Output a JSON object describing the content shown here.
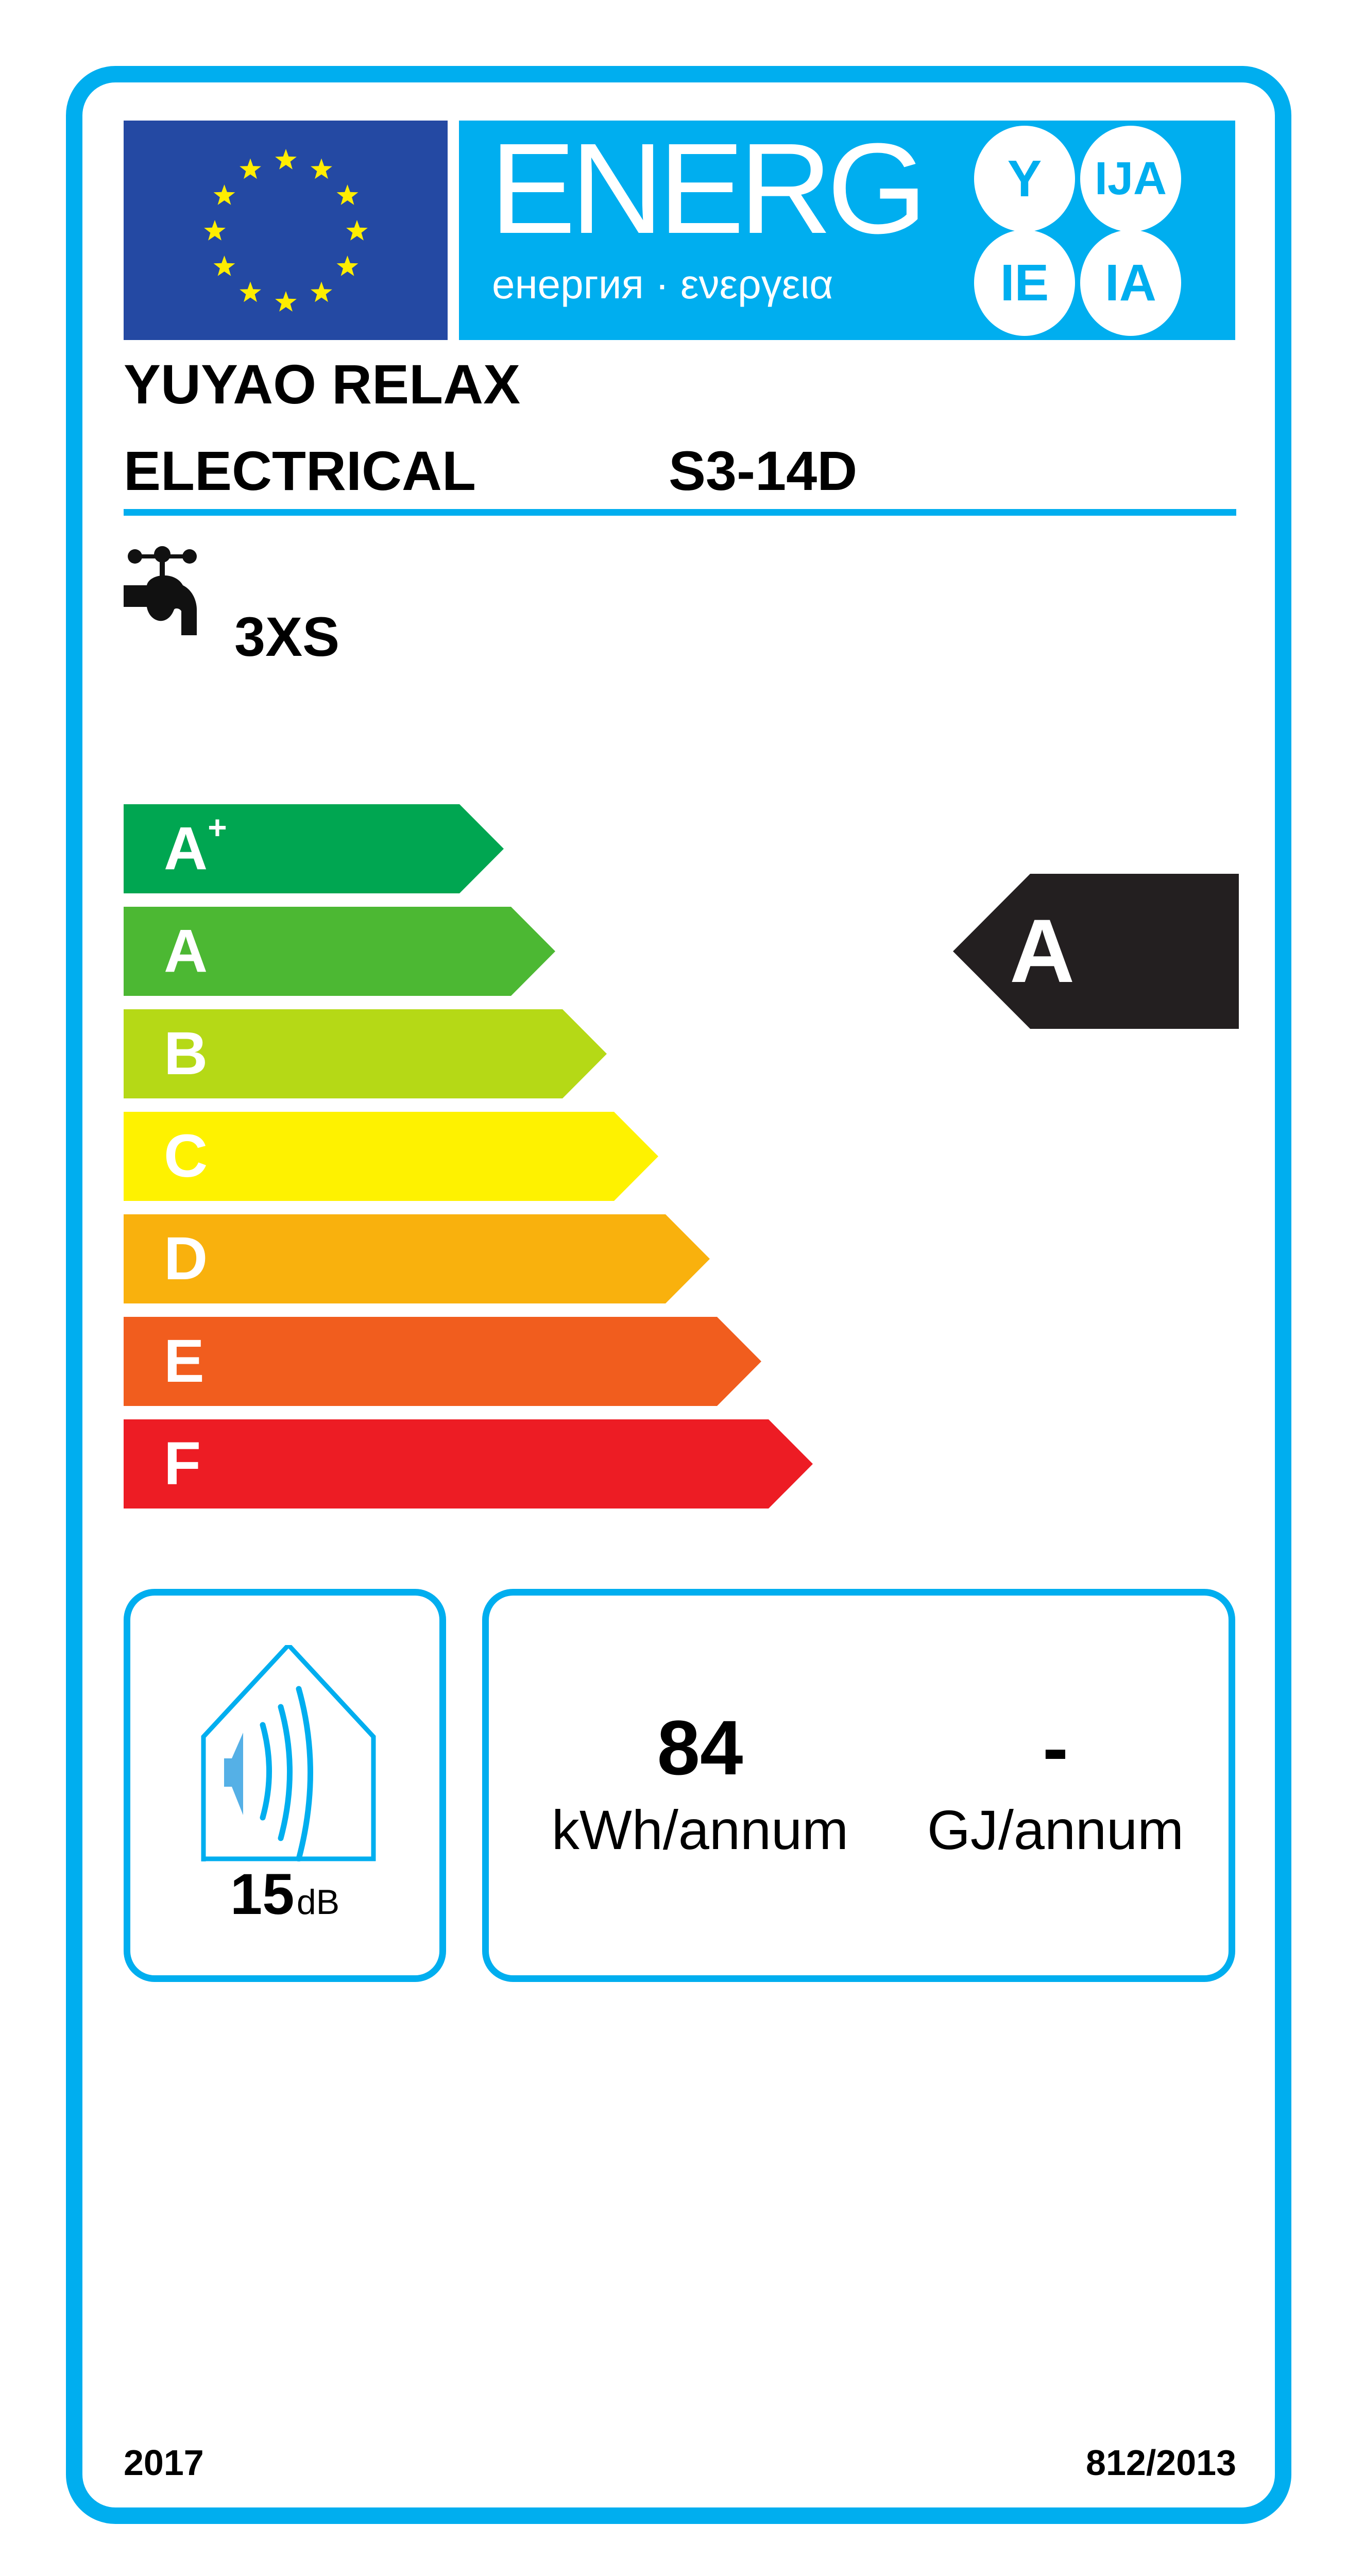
{
  "header": {
    "energy_word": "ENERG",
    "energy_subtitle": "енергия · ενεργεια",
    "language_suffixes": [
      "Y",
      "IJA",
      "IE",
      "IA"
    ],
    "flag_icon": "eu-flag-icon"
  },
  "supplier": {
    "name_line1": "YUYAO RELAX",
    "name_line2": "ELECTRICAL",
    "model": "S3-14D"
  },
  "load_profile": {
    "icon": "water-tap-icon",
    "value": "3XS"
  },
  "energy_classes": [
    {
      "label": "A",
      "sup": "+",
      "color": "#00a651"
    },
    {
      "label": "A",
      "sup": "",
      "color": "#4cb833"
    },
    {
      "label": "B",
      "sup": "",
      "color": "#b5d916"
    },
    {
      "label": "C",
      "sup": "",
      "color": "#fef200"
    },
    {
      "label": "D",
      "sup": "",
      "color": "#f9b10d"
    },
    {
      "label": "E",
      "sup": "",
      "color": "#f15d1e"
    },
    {
      "label": "F",
      "sup": "",
      "color": "#ed1c24"
    }
  ],
  "rating": {
    "label": "A",
    "color": "#231f20"
  },
  "noise": {
    "icon": "house-speaker-icon",
    "value": "15",
    "unit": "dB"
  },
  "consumption": {
    "electricity_value": "84",
    "electricity_unit": "kWh/annum",
    "fuel_value": "-",
    "fuel_unit": "GJ/annum"
  },
  "footer": {
    "year": "2017",
    "regulation": "812/2013"
  },
  "colors": {
    "accent": "#00aeef",
    "flag_blue": "#2449a3",
    "star_yellow": "#ffed00"
  }
}
